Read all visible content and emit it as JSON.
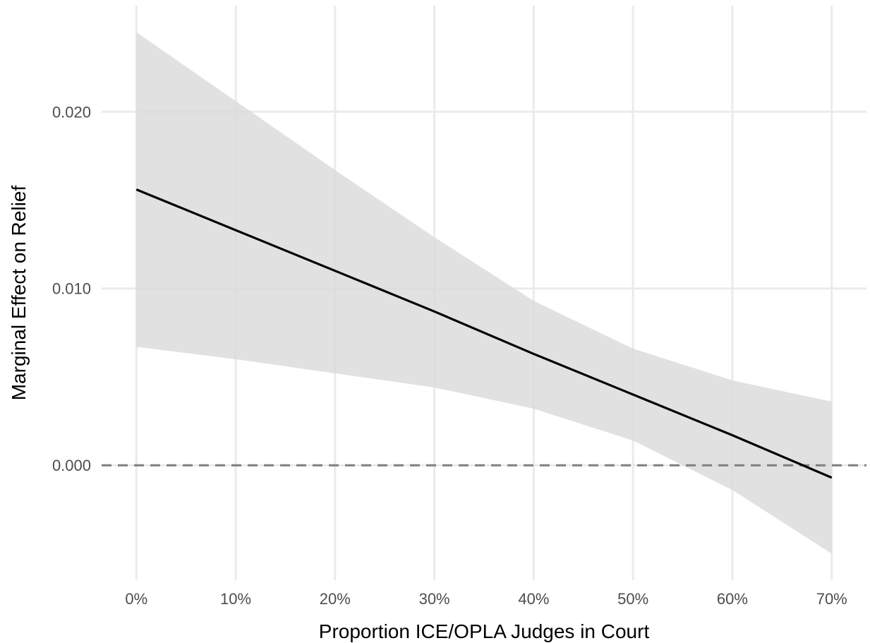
{
  "chart_data": {
    "type": "line",
    "title": "",
    "xlabel": "Proportion ICE/OPLA Judges in Court",
    "ylabel": "Marginal Effect on Relief",
    "x": [
      0,
      10,
      20,
      30,
      40,
      50,
      60,
      70
    ],
    "x_tick_labels": [
      "0%",
      "10%",
      "20%",
      "30%",
      "40%",
      "50%",
      "60%",
      "70%"
    ],
    "y_ticks": [
      0.0,
      0.01,
      0.02
    ],
    "y_tick_labels": [
      "0.000",
      "0.010",
      "0.020"
    ],
    "xlim": [
      -3.5,
      73.5
    ],
    "ylim": [
      -0.0065,
      0.026
    ],
    "series": [
      {
        "estimate": [
          0.0156,
          0.0133,
          0.011,
          0.0087,
          0.0063,
          0.004,
          0.0017,
          -0.0007
        ],
        "ci_lower": [
          0.0067,
          0.006,
          0.0052,
          0.0044,
          0.0032,
          0.0014,
          -0.0014,
          -0.005
        ],
        "ci_upper": [
          0.0245,
          0.0206,
          0.0167,
          0.0129,
          0.0093,
          0.0066,
          0.0048,
          0.0036
        ]
      }
    ],
    "reference_line": {
      "y": 0.0,
      "style": "dashed",
      "color": "#7f7f7f"
    },
    "grid": true,
    "legend": "none",
    "colors": {
      "line": "#000000",
      "band": "#d9d9d9",
      "grid": "#ebebeb",
      "tick_text": "#4d4d4d"
    }
  }
}
